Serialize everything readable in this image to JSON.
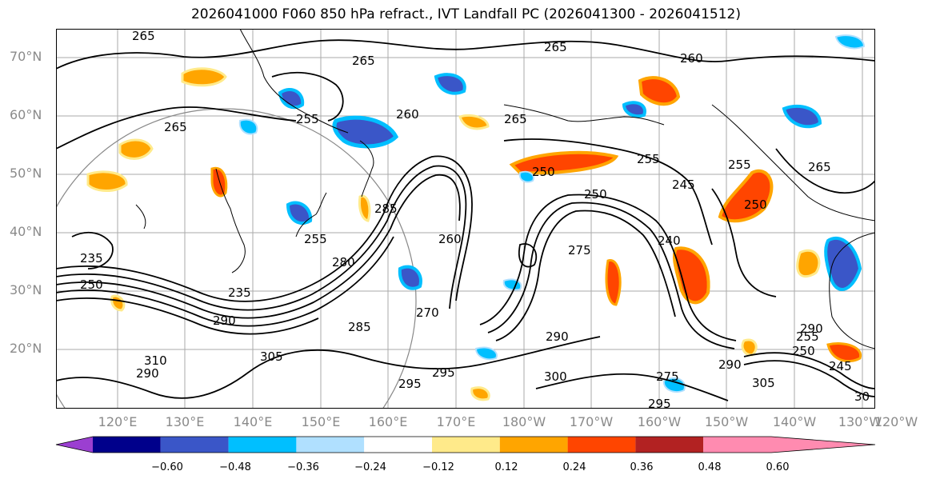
{
  "title": "2026041000 F060 850 hPa refract., IVT Landfall PC (2026041300 - 2026041512)",
  "lat_labels": [
    "70°N",
    "60°N",
    "50°N",
    "40°N",
    "30°N",
    "20°N"
  ],
  "lon_labels": [
    "120°E",
    "130°E",
    "140°E",
    "150°E",
    "160°E",
    "170°E",
    "180°W",
    "170°W",
    "160°W",
    "150°W",
    "140°W",
    "130°W",
    "120°W"
  ],
  "contour_labels": [
    "265",
    "265",
    "265",
    "260",
    "255",
    "260",
    "265",
    "250",
    "255",
    "265",
    "255",
    "265",
    "250",
    "250",
    "240",
    "245",
    "235",
    "285",
    "280",
    "270",
    "275",
    "255",
    "260",
    "235",
    "250",
    "290",
    "285",
    "290",
    "300",
    "295",
    "295",
    "290",
    "305",
    "290",
    "275",
    "290",
    "295",
    "255",
    "250",
    "245",
    "305",
    "310",
    "30"
  ],
  "colorbar": {
    "ticks": [
      "−0.60",
      "−0.48",
      "−0.36",
      "−0.24",
      "−0.12",
      "0.12",
      "0.24",
      "0.36",
      "0.48",
      "0.60"
    ],
    "colors": [
      "#9b3fd1",
      "#00008b",
      "#3a56c8",
      "#00bfff",
      "#b0e0ff",
      "#ffffff",
      "#ffea8a",
      "#ffa500",
      "#ff4500",
      "#b22222",
      "#ff8bb0"
    ]
  }
}
